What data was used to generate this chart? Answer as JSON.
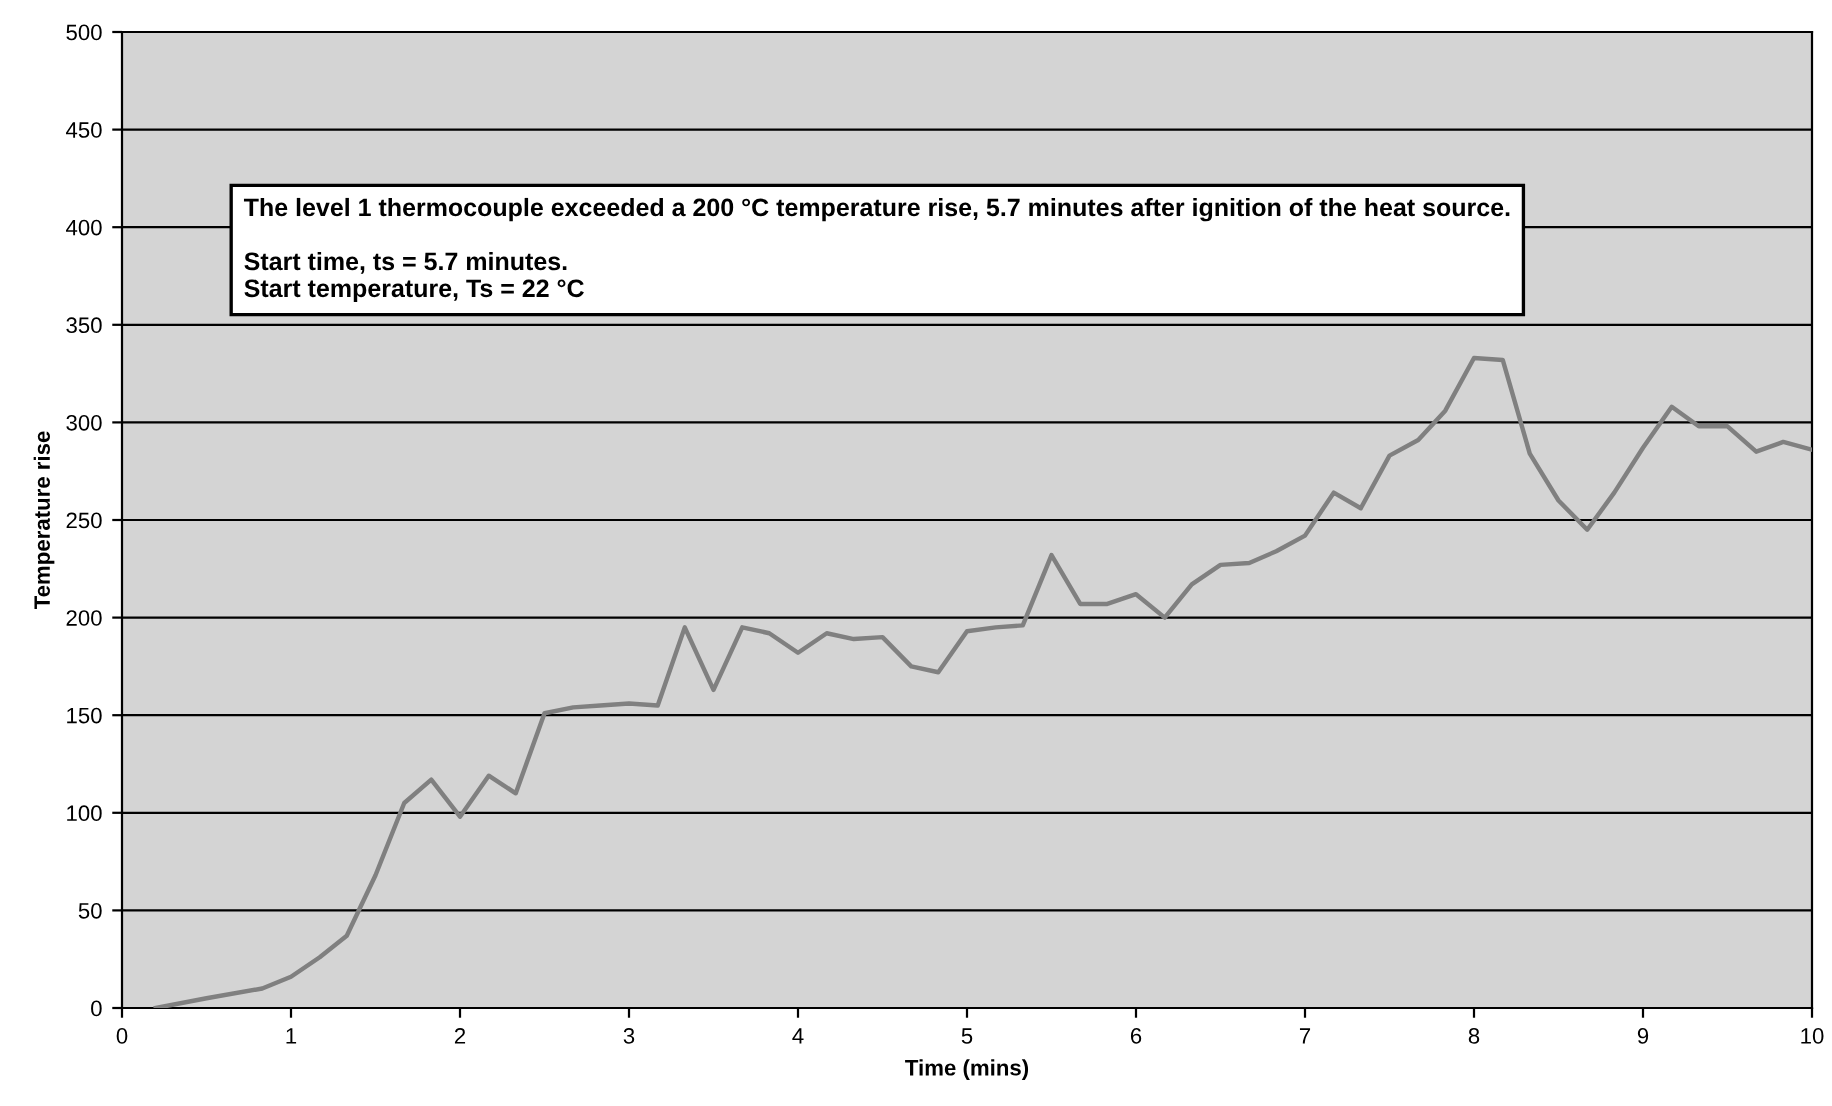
{
  "chart_data": {
    "type": "line",
    "xlabel": "Time (mins)",
    "ylabel": "Temperature rise",
    "annotations": [
      "The level 1 thermocouple exceeded a 200 °C temperature rise, 5.7 minutes after ignition of the heat source.\n\nStart time, ts = 5.7 minutes.\nStart temperature, Ts = 22 °C"
    ],
    "series": [
      {
        "color": "#808080",
        "x": [
          0.2,
          0.5,
          0.83,
          1.0,
          1.17,
          1.33,
          1.5,
          1.67,
          1.83,
          2.0,
          2.17,
          2.33,
          2.5,
          2.67,
          2.83,
          3.0,
          3.17,
          3.33,
          3.5,
          3.67,
          3.83,
          4.0,
          4.17,
          4.33,
          4.5,
          4.67,
          4.83,
          5.0,
          5.17,
          5.33,
          5.5,
          5.67,
          5.83,
          6.0,
          6.17,
          6.33,
          6.5,
          6.67,
          6.83,
          7.0,
          7.17,
          7.33,
          7.5,
          7.67,
          7.83,
          8.0,
          8.17,
          8.33,
          8.5,
          8.67,
          8.83,
          9.0,
          9.17,
          9.33,
          9.5,
          9.67,
          9.83,
          10.0
        ],
        "values": [
          0,
          5,
          10,
          16,
          26,
          37,
          68,
          105,
          117,
          98,
          119,
          110,
          151,
          154,
          155,
          156,
          155,
          195,
          163,
          195,
          192,
          182,
          192,
          189,
          190,
          175,
          172,
          193,
          195,
          196,
          232,
          207,
          207,
          212,
          200,
          217,
          227,
          228,
          234,
          242,
          264,
          256,
          283,
          291,
          306,
          333,
          332,
          284,
          260,
          245,
          264,
          287,
          308,
          298,
          298,
          285,
          290,
          286
        ]
      }
    ],
    "xlim": [
      0,
      10
    ],
    "xticks": [
      0,
      1,
      2,
      3,
      4,
      5,
      6,
      7,
      8,
      9,
      10
    ],
    "ylim": [
      0,
      500
    ],
    "yticks": [
      0,
      50,
      100,
      150,
      200,
      250,
      300,
      350,
      400,
      450,
      500
    ],
    "grid": "y",
    "marker": "none",
    "line_style": "solid",
    "legend": false
  }
}
